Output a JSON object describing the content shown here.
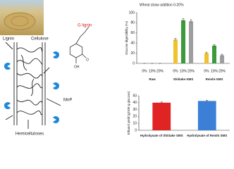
{
  "diagram": {
    "labels": {
      "lignin": "Lignin",
      "cellulose": "Cellulose",
      "g_lignin": "G lignin",
      "oh": "OH",
      "o": "O",
      "mnp": "MnP",
      "hemicelluloses": "Hemicelluloses"
    }
  },
  "chart_data": [
    {
      "type": "bar",
      "title": "Wheat straw addition 0-20%",
      "ylabel": "Glucose digestibility (%)",
      "categories": [
        "Raw",
        "Shiitake-SMS",
        "Reishi-SMS"
      ],
      "series": [
        {
          "name": "0%",
          "color": "#f2c12e",
          "values": [
            0,
            47,
            20
          ],
          "errors": [
            0,
            2,
            2
          ]
        },
        {
          "name": "10%",
          "color": "#3c9a3c",
          "values": [
            0,
            85,
            35
          ],
          "errors": [
            0,
            3,
            2
          ]
        },
        {
          "name": "20%",
          "color": "#9e9e9e",
          "values": [
            0,
            83,
            16
          ],
          "errors": [
            0,
            3,
            2
          ]
        }
      ],
      "ylim": [
        0,
        100
      ],
      "yticks": [
        0,
        20,
        40,
        60,
        80,
        100
      ]
    },
    {
      "type": "bar",
      "ylabel": "Ethanol yield (g/100 g glucose)",
      "categories": [
        "Hydrolysate of Shiitake SMS",
        "Hydrolysate of Reishi SMS"
      ],
      "values": [
        40,
        42.5
      ],
      "errors": [
        1,
        1
      ],
      "colors": [
        "#e02424",
        "#3b80d6"
      ],
      "ylim": [
        0,
        50
      ],
      "yticks": [
        0,
        10,
        20,
        30,
        40,
        50
      ]
    }
  ]
}
